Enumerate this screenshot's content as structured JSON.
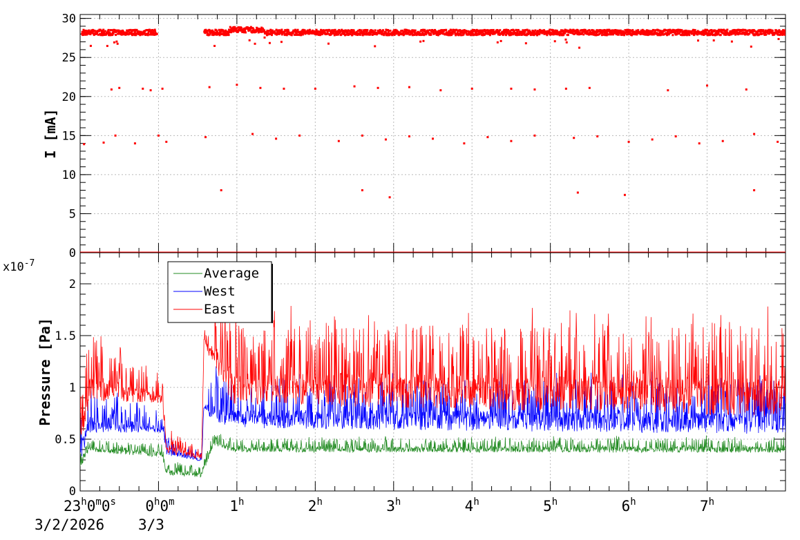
{
  "chart_data": [
    {
      "type": "scatter",
      "ylabel": "I [mA]",
      "xlim_hours": [
        -1,
        8
      ],
      "ylim": [
        0,
        30.5
      ],
      "yticks": [
        0,
        5,
        10,
        15,
        20,
        25,
        30
      ],
      "grid": true,
      "series": [
        {
          "color": "#ff0000",
          "bands": [
            {
              "y": 28.2,
              "segments": [
                [
                  -0.98,
                  -0.02
                ],
                [
                  0.58,
                  8.0
                ]
              ]
            },
            {
              "y": 0.0,
              "segments": [
                [
                  -1.0,
                  8.0
                ]
              ]
            }
          ],
          "sparse_points": [
            [
              -0.6,
              20.9
            ],
            [
              -0.5,
              21.1
            ],
            [
              -0.2,
              21.0
            ],
            [
              -0.1,
              20.8
            ],
            [
              0.05,
              21.0
            ],
            [
              0.65,
              21.2
            ],
            [
              1.0,
              21.5
            ],
            [
              1.3,
              21.1
            ],
            [
              1.6,
              21.0
            ],
            [
              2.0,
              21.0
            ],
            [
              2.5,
              21.3
            ],
            [
              2.8,
              21.1
            ],
            [
              3.2,
              21.2
            ],
            [
              3.6,
              20.8
            ],
            [
              4.0,
              21.0
            ],
            [
              4.5,
              21.0
            ],
            [
              4.8,
              20.9
            ],
            [
              5.2,
              21.0
            ],
            [
              5.5,
              21.1
            ],
            [
              6.5,
              20.8
            ],
            [
              7.0,
              21.4
            ],
            [
              7.5,
              20.9
            ],
            [
              -0.95,
              13.9
            ],
            [
              -0.7,
              14.1
            ],
            [
              -0.55,
              15.0
            ],
            [
              -0.3,
              14.0
            ],
            [
              0.0,
              15.0
            ],
            [
              0.1,
              14.2
            ],
            [
              0.6,
              14.8
            ],
            [
              1.2,
              15.2
            ],
            [
              1.5,
              14.6
            ],
            [
              1.8,
              15.0
            ],
            [
              2.3,
              14.3
            ],
            [
              2.6,
              15.0
            ],
            [
              2.9,
              14.5
            ],
            [
              3.2,
              14.9
            ],
            [
              3.5,
              14.6
            ],
            [
              3.9,
              14.0
            ],
            [
              4.2,
              14.8
            ],
            [
              4.5,
              14.3
            ],
            [
              4.8,
              15.0
            ],
            [
              5.3,
              14.7
            ],
            [
              5.6,
              14.9
            ],
            [
              6.0,
              14.2
            ],
            [
              6.3,
              14.5
            ],
            [
              6.6,
              14.9
            ],
            [
              6.9,
              14.0
            ],
            [
              7.2,
              14.3
            ],
            [
              7.6,
              15.2
            ],
            [
              7.9,
              14.2
            ],
            [
              0.8,
              8.0
            ],
            [
              2.6,
              8.0
            ],
            [
              2.95,
              7.1
            ],
            [
              5.35,
              7.7
            ],
            [
              5.95,
              7.4
            ],
            [
              7.6,
              8.0
            ]
          ]
        }
      ]
    },
    {
      "type": "line",
      "ylabel": "Pressure [Pa]",
      "y_multiplier": "x10",
      "y_exponent": "-7",
      "xlim_hours": [
        -1,
        8
      ],
      "ylim": [
        0,
        2.3
      ],
      "yticks": [
        0,
        0.5,
        1,
        1.5,
        2
      ],
      "ytick_labels": [
        "0",
        "0.5",
        "1",
        "1.5",
        "2"
      ],
      "grid": true,
      "legend": "top-left",
      "series": [
        {
          "name": "Average",
          "color": "#228b22",
          "baseline": [
            [
              -1.0,
              0.25
            ],
            [
              -0.88,
              0.4
            ],
            [
              0.05,
              0.35
            ],
            [
              0.1,
              0.18
            ],
            [
              0.55,
              0.15
            ],
            [
              0.7,
              0.47
            ],
            [
              0.95,
              0.4
            ],
            [
              8.0,
              0.4
            ]
          ],
          "spike_amp": [
            [
              -1.0,
              0.08
            ],
            [
              8.0,
              0.1
            ]
          ]
        },
        {
          "name": "West",
          "color": "#0000ff",
          "baseline": [
            [
              -1.0,
              0.35
            ],
            [
              -0.88,
              0.65
            ],
            [
              0.05,
              0.6
            ],
            [
              0.1,
              0.38
            ],
            [
              0.55,
              0.3
            ],
            [
              0.58,
              0.8
            ],
            [
              0.95,
              0.7
            ],
            [
              8.0,
              0.65
            ]
          ],
          "spike_amp": [
            [
              -1.0,
              0.3
            ],
            [
              0.55,
              0.05
            ],
            [
              0.7,
              0.3
            ],
            [
              8.0,
              0.35
            ]
          ]
        },
        {
          "name": "East",
          "color": "#ff0000",
          "baseline": [
            [
              -1.0,
              0.5
            ],
            [
              -0.88,
              1.0
            ],
            [
              0.05,
              0.9
            ],
            [
              0.1,
              0.4
            ],
            [
              0.55,
              0.32
            ],
            [
              0.58,
              1.45
            ],
            [
              0.95,
              1.0
            ],
            [
              8.0,
              0.9
            ]
          ],
          "spike_amp": [
            [
              -1.0,
              0.45
            ],
            [
              0.55,
              0.05
            ],
            [
              0.7,
              0.35
            ],
            [
              1.0,
              0.55
            ],
            [
              8.0,
              0.6
            ]
          ]
        }
      ]
    }
  ],
  "x_axis": {
    "tick_labels": [
      {
        "hour": -1,
        "main": "23",
        "h": "h",
        "m_val": "0",
        "m": "m",
        "s_val": "0",
        "s": "s"
      },
      {
        "hour": 0,
        "main": "0",
        "h": "h",
        "m_val": "0",
        "m": "m"
      },
      {
        "hour": 1,
        "main": "1",
        "h": "h"
      },
      {
        "hour": 2,
        "main": "2",
        "h": "h"
      },
      {
        "hour": 3,
        "main": "3",
        "h": "h"
      },
      {
        "hour": 4,
        "main": "4",
        "h": "h"
      },
      {
        "hour": 5,
        "main": "5",
        "h": "h"
      },
      {
        "hour": 6,
        "main": "6",
        "h": "h"
      },
      {
        "hour": 7,
        "main": "7",
        "h": "h"
      }
    ],
    "date_start": "3/2/2026",
    "date_next": "3/3"
  }
}
